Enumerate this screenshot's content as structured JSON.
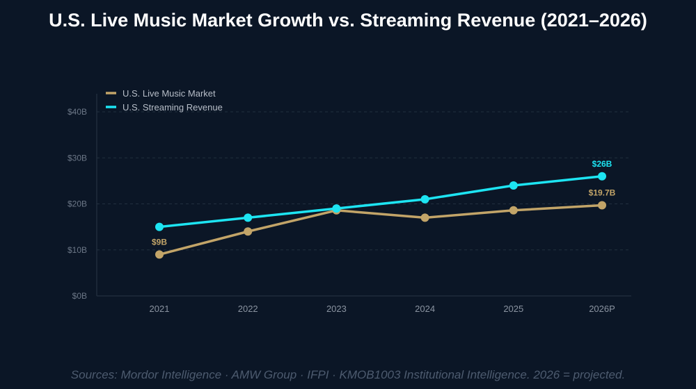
{
  "title": "U.S. Live Music Market Growth vs. Streaming Revenue (2021–2026)",
  "source": "Sources: Mordor Intelligence · AMW Group · IFPI · KMOB1003 Institutional Intelligence. 2026 = projected.",
  "chart_data": {
    "type": "line",
    "title": "U.S. Live Music Market Growth vs. Streaming Revenue (2021–2026)",
    "categories": [
      "2021",
      "2022",
      "2023",
      "2024",
      "2025",
      "2026P"
    ],
    "ylim": [
      0,
      40
    ],
    "yticks": [
      0,
      10,
      20,
      30,
      40
    ],
    "ytick_labels": [
      "$0B",
      "$10B",
      "$20B",
      "$30B",
      "$40B"
    ],
    "grid": true,
    "legend": "top-left",
    "series": [
      {
        "name": "U.S. Live Music Market",
        "color": "#c2a468",
        "values": [
          9,
          14,
          18.6,
          17,
          18.6,
          19.7
        ],
        "labels": [
          {
            "index": 0,
            "text": "$9B"
          },
          {
            "index": 5,
            "text": "$19.7B"
          }
        ]
      },
      {
        "name": "U.S. Streaming Revenue",
        "color": "#1de4f2",
        "values": [
          15,
          17,
          19,
          21,
          24,
          26
        ],
        "labels": [
          {
            "index": 5,
            "text": "$26B"
          }
        ]
      }
    ]
  }
}
